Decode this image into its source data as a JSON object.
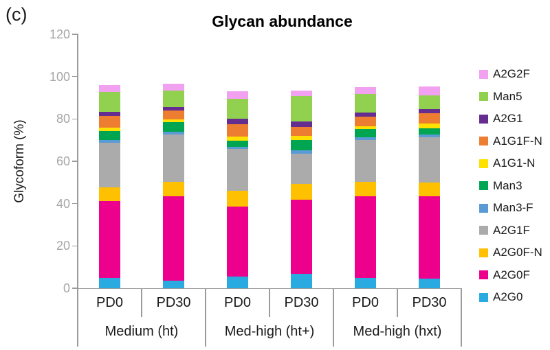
{
  "figure_label": "(c)",
  "chart_data": {
    "type": "stacked-bar",
    "title": "Glycan abundance",
    "ylabel": "Glycoform (%)",
    "ylim": [
      0,
      120
    ],
    "ytick_step": 20,
    "grid": false,
    "legend_position": "right",
    "group_labels": [
      "Medium (ht)",
      "Med-high (ht+)",
      "Med-high (hxt)"
    ],
    "bar_labels": [
      "PD0",
      "PD30",
      "PD0",
      "PD30",
      "PD0",
      "PD30"
    ],
    "stack_order": "bottom-to-top as listed; legend shown top-to-bottom reversed",
    "series": [
      {
        "name": "A2G0",
        "color": "#29ABE2",
        "values": [
          4.8,
          3.5,
          5.5,
          6.9,
          4.8,
          4.4
        ]
      },
      {
        "name": "A2G0F",
        "color": "#EC008C",
        "values": [
          36.5,
          40.0,
          33.2,
          34.8,
          38.8,
          38.9
        ]
      },
      {
        "name": "A2G0F-N",
        "color": "#FFC000",
        "values": [
          6.3,
          6.8,
          7.3,
          7.7,
          6.7,
          6.8
        ]
      },
      {
        "name": "A2G1F",
        "color": "#ABABAB",
        "values": [
          21.0,
          22.4,
          19.8,
          14.3,
          19.6,
          21.3
        ]
      },
      {
        "name": "Man3-F",
        "color": "#5B9BD5",
        "values": [
          1.3,
          1.4,
          1.1,
          1.5,
          1.3,
          1.4
        ]
      },
      {
        "name": "Man3",
        "color": "#00A551",
        "values": [
          4.3,
          4.3,
          2.7,
          4.8,
          4.0,
          2.9
        ]
      },
      {
        "name": "A1G1-N",
        "color": "#FFE100",
        "values": [
          1.8,
          1.3,
          2.2,
          2.0,
          1.2,
          2.0
        ]
      },
      {
        "name": "A1G1F-N",
        "color": "#ED7D31",
        "values": [
          5.5,
          4.4,
          5.6,
          4.3,
          4.8,
          4.9
        ]
      },
      {
        "name": "A2G1",
        "color": "#662D91",
        "values": [
          1.9,
          1.4,
          2.8,
          2.4,
          1.7,
          1.9
        ]
      },
      {
        "name": "Man5",
        "color": "#92D050",
        "values": [
          9.3,
          7.8,
          9.4,
          12.1,
          8.9,
          6.7
        ]
      },
      {
        "name": "A2G2F",
        "color": "#F2A0F0",
        "values": [
          3.2,
          3.2,
          3.5,
          2.5,
          3.2,
          4.0
        ]
      }
    ],
    "axis_color": "#9B9B9B",
    "tick_label_color": "#A6A6A6"
  }
}
